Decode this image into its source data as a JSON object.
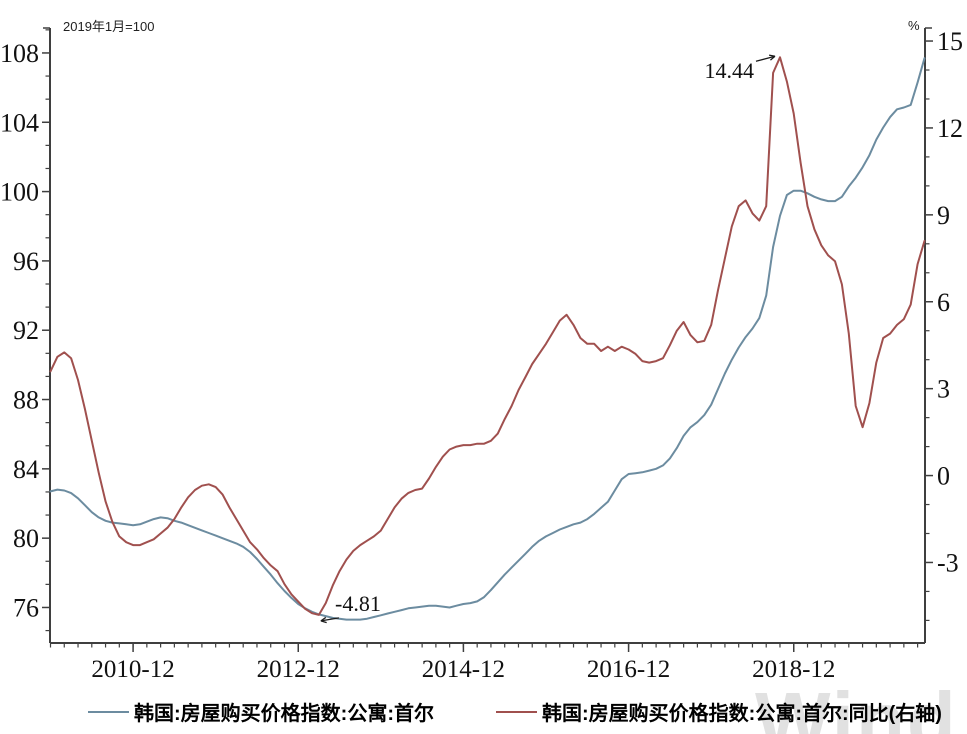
{
  "chart_data": {
    "type": "line",
    "base_note": "2019年1月=100",
    "right_unit": "%",
    "watermark": "Wind",
    "x_axis": {
      "start": "2009-12",
      "end": "2020-07",
      "freq": "monthly",
      "tick_labels": [
        {
          "label": "2010-12",
          "i": 12
        },
        {
          "label": "2012-12",
          "i": 36
        },
        {
          "label": "2014-12",
          "i": 60
        },
        {
          "label": "2016-12",
          "i": 84
        },
        {
          "label": "2018-12",
          "i": 108
        }
      ]
    },
    "left_axis": {
      "ticks": [
        76,
        80,
        84,
        88,
        92,
        96,
        100,
        104,
        108
      ],
      "range": [
        73.95,
        109.44
      ],
      "major_step": 4,
      "minor_divisions": 3
    },
    "right_axis": {
      "ticks": [
        -3,
        0,
        3,
        6,
        9,
        12,
        15
      ],
      "range": [
        -5.78,
        15.45
      ],
      "major_step": 3,
      "minor_divisions": 3
    },
    "grid": "off",
    "legend_position": "bottom",
    "series": [
      {
        "name": "韩国:房屋购买价格指数:公寓:首尔",
        "axis": "left",
        "color": "#6c8ca0",
        "values": [
          82.7,
          82.8,
          82.75,
          82.6,
          82.3,
          81.9,
          81.5,
          81.2,
          81.0,
          80.9,
          80.85,
          80.8,
          80.75,
          80.8,
          80.95,
          81.1,
          81.2,
          81.15,
          81.0,
          80.9,
          80.75,
          80.6,
          80.45,
          80.3,
          80.15,
          80.0,
          79.85,
          79.7,
          79.5,
          79.2,
          78.8,
          78.35,
          77.9,
          77.4,
          76.95,
          76.55,
          76.2,
          75.95,
          75.75,
          75.6,
          75.5,
          75.4,
          75.35,
          75.3,
          75.3,
          75.3,
          75.35,
          75.45,
          75.55,
          75.65,
          75.75,
          75.85,
          75.95,
          76.0,
          76.05,
          76.1,
          76.1,
          76.05,
          76.0,
          76.1,
          76.2,
          76.25,
          76.35,
          76.6,
          77.0,
          77.45,
          77.9,
          78.3,
          78.7,
          79.1,
          79.5,
          79.85,
          80.1,
          80.3,
          80.5,
          80.65,
          80.8,
          80.9,
          81.1,
          81.4,
          81.75,
          82.1,
          82.75,
          83.4,
          83.7,
          83.75,
          83.8,
          83.9,
          84.0,
          84.2,
          84.6,
          85.2,
          85.9,
          86.4,
          86.7,
          87.1,
          87.7,
          88.6,
          89.5,
          90.3,
          91.0,
          91.6,
          92.1,
          92.7,
          94.0,
          96.8,
          98.6,
          99.8,
          100.05,
          100.05,
          99.9,
          99.7,
          99.55,
          99.45,
          99.45,
          99.7,
          100.3,
          100.8,
          101.4,
          102.1,
          103.0,
          103.7,
          104.3,
          104.75,
          104.85,
          105.0,
          106.3,
          107.7
        ]
      },
      {
        "name": "韩国:房屋购买价格指数:公寓:首尔:同比(右轴)",
        "axis": "right",
        "color": "#a0504e",
        "values": [
          3.6,
          4.1,
          4.25,
          4.05,
          3.3,
          2.3,
          1.2,
          0.1,
          -0.9,
          -1.6,
          -2.1,
          -2.3,
          -2.4,
          -2.4,
          -2.3,
          -2.2,
          -2.0,
          -1.8,
          -1.5,
          -1.1,
          -0.75,
          -0.5,
          -0.35,
          -0.3,
          -0.4,
          -0.65,
          -1.1,
          -1.5,
          -1.9,
          -2.3,
          -2.55,
          -2.85,
          -3.1,
          -3.3,
          -3.75,
          -4.1,
          -4.35,
          -4.6,
          -4.75,
          -4.81,
          -4.4,
          -3.8,
          -3.3,
          -2.9,
          -2.6,
          -2.4,
          -2.25,
          -2.1,
          -1.9,
          -1.5,
          -1.1,
          -0.8,
          -0.6,
          -0.5,
          -0.45,
          -0.1,
          0.3,
          0.65,
          0.9,
          1.0,
          1.05,
          1.05,
          1.1,
          1.1,
          1.2,
          1.45,
          1.95,
          2.4,
          2.95,
          3.4,
          3.85,
          4.2,
          4.55,
          4.95,
          5.35,
          5.55,
          5.2,
          4.75,
          4.55,
          4.55,
          4.3,
          4.45,
          4.3,
          4.45,
          4.35,
          4.2,
          3.95,
          3.9,
          3.95,
          4.05,
          4.5,
          5.0,
          5.3,
          4.85,
          4.6,
          4.65,
          5.2,
          6.4,
          7.5,
          8.6,
          9.3,
          9.5,
          9.05,
          8.8,
          9.3,
          13.9,
          14.44,
          13.6,
          12.5,
          10.8,
          9.3,
          8.5,
          7.95,
          7.6,
          7.4,
          6.6,
          4.9,
          2.4,
          1.67,
          2.5,
          3.9,
          4.75,
          4.9,
          5.2,
          5.4,
          5.9,
          7.3,
          8.1
        ]
      }
    ],
    "annotations": [
      {
        "text": "14.44",
        "series": 1,
        "month": "2018-10",
        "type": "peak"
      },
      {
        "text": "-4.81",
        "series": 1,
        "month": "2013-03",
        "type": "trough"
      }
    ]
  }
}
